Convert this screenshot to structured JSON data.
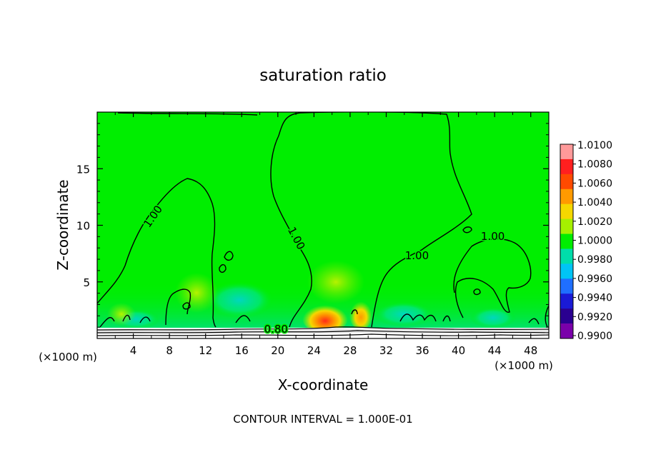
{
  "chart_data": {
    "type": "heatmap",
    "title": "saturation ratio",
    "xlabel": "X-coordinate",
    "ylabel": "Z-coordinate",
    "x_unit_left": "(×1000 m)",
    "x_unit_right": "(×1000 m)",
    "footer": "CONTOUR INTERVAL = 1.000E-01",
    "xlim": [
      0,
      50
    ],
    "ylim": [
      0,
      20
    ],
    "x_ticks": [
      "4",
      "8",
      "12",
      "16",
      "20",
      "24",
      "28",
      "32",
      "36",
      "40",
      "44",
      "48"
    ],
    "y_ticks": [
      "5",
      "10",
      "15"
    ],
    "contour_labels": [
      {
        "text": "1.00",
        "x": 6.5,
        "z": 10.6
      },
      {
        "text": "1.00",
        "x": 21.7,
        "z": 8.7
      },
      {
        "text": "1.00",
        "x": 35.4,
        "z": 7.0
      },
      {
        "text": "1.00",
        "x": 43.8,
        "z": 8.7
      },
      {
        "text": "0.80",
        "x": 19.8,
        "z": 0.5
      }
    ],
    "colorbar": {
      "labels": [
        "1.0100",
        "1.0080",
        "1.0060",
        "1.0040",
        "1.0020",
        "1.0000",
        "0.9980",
        "0.9960",
        "0.9940",
        "0.9920",
        "0.9900"
      ],
      "colors": [
        "#ff9a9a",
        "#ff1f1f",
        "#ff4a00",
        "#ff9a00",
        "#f5d800",
        "#a6f000",
        "#00ee00",
        "#00ddaa",
        "#00c4f5",
        "#1f6fff",
        "#1a1ad6",
        "#2a0090",
        "#7a00aa"
      ]
    }
  }
}
